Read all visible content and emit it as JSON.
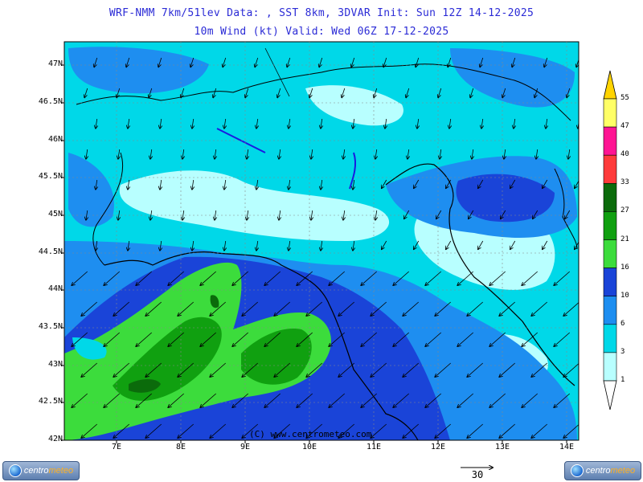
{
  "header": {
    "line1": "WRF-NMM 7km/51lev  Data: , SST 8km, 3DVAR  Init: Sun 12Z 14-12-2025",
    "line2": "10m Wind (kt)  Valid: Wed 06Z 17-12-2025"
  },
  "axes": {
    "lat_labels": [
      "47N",
      "46.5N",
      "46N",
      "45.5N",
      "45N",
      "44.5N",
      "44N",
      "43.5N",
      "43N",
      "42.5N",
      "42N"
    ],
    "lon_labels": [
      "7E",
      "8E",
      "9E",
      "10E",
      "11E",
      "12E",
      "13E",
      "14E"
    ]
  },
  "colorbar": {
    "labels": [
      "55",
      "47",
      "40",
      "33",
      "27",
      "21",
      "16",
      "10",
      "6",
      "3",
      "1"
    ],
    "colors": [
      "#ffd400",
      "#ffff66",
      "#ff1493",
      "#ff3b3b",
      "#0b6b0b",
      "#10a010",
      "#3cdc3c",
      "#1a44d8",
      "#1e8ef0",
      "#00d8e8",
      "#b8ffff"
    ]
  },
  "copyright": "(C) www.centrometeo.com",
  "reference_vector": {
    "label": "30"
  },
  "logos": {
    "left": "centrometeo",
    "right": "centrometeo"
  }
}
